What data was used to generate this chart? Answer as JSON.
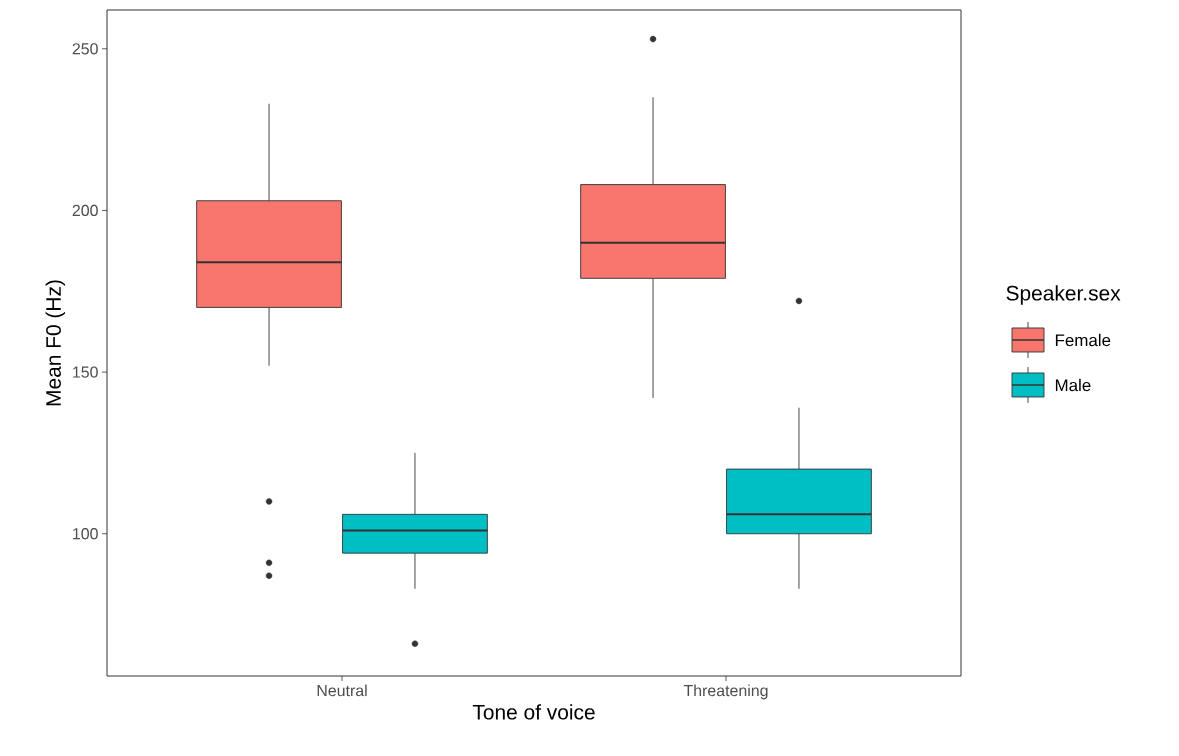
{
  "chart_data": {
    "type": "box",
    "xlabel": "Tone of voice",
    "ylabel": "Mean F0 (Hz)",
    "legend_title": "Speaker.sex",
    "legend": "right",
    "categories": [
      "Neutral",
      "Threatening"
    ],
    "ylim": [
      56,
      262
    ],
    "yticks": [
      100,
      150,
      200,
      250
    ],
    "series": [
      {
        "name": "Female",
        "color": "#f8766d",
        "boxes": [
          {
            "low": 152,
            "q1": 170,
            "median": 184,
            "q3": 203,
            "high": 233,
            "outliers": [
              110,
              91,
              87
            ]
          },
          {
            "low": 142,
            "q1": 179,
            "median": 190,
            "q3": 208,
            "high": 235,
            "outliers": [
              253
            ]
          }
        ]
      },
      {
        "name": "Male",
        "color": "#00bfc4",
        "boxes": [
          {
            "low": 83,
            "q1": 94,
            "median": 101,
            "q3": 106,
            "high": 125,
            "outliers": [
              66
            ]
          },
          {
            "low": 83,
            "q1": 100,
            "median": 106,
            "q3": 120,
            "high": 139,
            "outliers": [
              172
            ]
          }
        ]
      }
    ]
  }
}
